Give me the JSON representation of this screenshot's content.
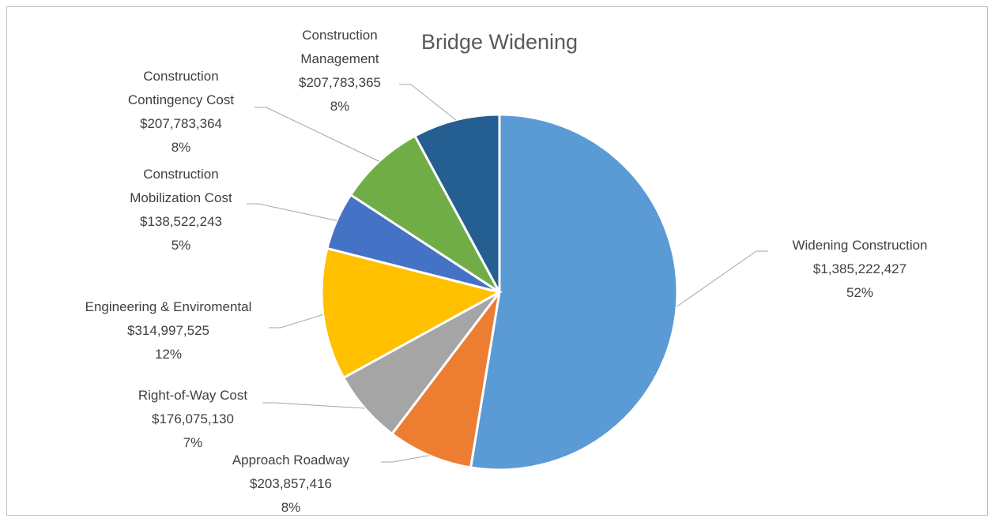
{
  "chart_data": {
    "type": "pie",
    "title": "Bridge Widening",
    "categories": [
      "Widening Construction",
      "Approach Roadway",
      "Right-of-Way Cost",
      "Engineering & Enviromental",
      "Construction Mobilization Cost",
      "Construction Contingency Cost",
      "Construction Management"
    ],
    "values": [
      1385222427,
      203857416,
      176075130,
      314997525,
      138522243,
      207783364,
      207783365
    ],
    "value_labels": [
      "$1,385,222,427",
      "$203,857,416",
      "$176,075,130",
      "$314,997,525",
      "$138,522,243",
      "$207,783,364",
      "$207,783,365"
    ],
    "percents": [
      52,
      8,
      7,
      12,
      5,
      8,
      8
    ],
    "percent_labels": [
      "52%",
      "8%",
      "7%",
      "12%",
      "5%",
      "8%",
      "8%"
    ],
    "colors": [
      "#5b9bd5",
      "#ed7d31",
      "#a5a5a5",
      "#ffc000",
      "#4472c4",
      "#70ad47",
      "#255e91"
    ]
  }
}
